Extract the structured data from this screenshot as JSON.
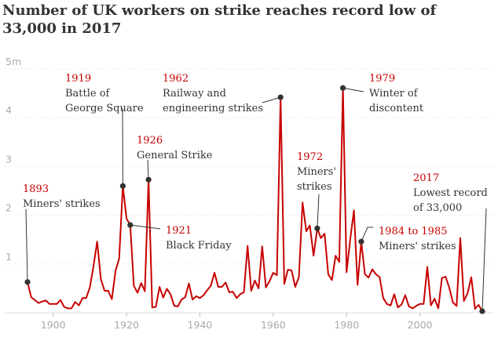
{
  "title": "Number of UK workers on strike reaches record low of 33,000 in 2017",
  "colors": {
    "line": "#c70000",
    "text": "#333333",
    "tick": "#aaaaaa",
    "grid": "#dcdcdc",
    "marker": "#333333"
  },
  "chart_data": {
    "type": "line",
    "xlim": [
      1887,
      2020
    ],
    "ylim": [
      0,
      5
    ],
    "grid": true,
    "y_ticks": [
      0,
      1,
      2,
      3,
      4,
      5
    ],
    "y_tick_labels": [
      "",
      "1",
      "2",
      "3",
      "4",
      "5m"
    ],
    "x_ticks": [
      1900,
      1920,
      1940,
      1960,
      1980,
      2000
    ],
    "x_tick_labels": [
      "1900",
      "1920",
      "1940",
      "1960",
      "1980",
      "2000"
    ],
    "series": [
      {
        "x": [
          1893,
          1894,
          1895,
          1896,
          1897,
          1898,
          1899,
          1900,
          1901,
          1902,
          1903,
          1904,
          1905,
          1906,
          1907,
          1908,
          1909,
          1910,
          1911,
          1912,
          1913,
          1914,
          1915,
          1916,
          1917,
          1918,
          1919,
          1920,
          1921,
          1922,
          1923,
          1924,
          1925,
          1926,
          1927,
          1928,
          1929,
          1930,
          1931,
          1932,
          1933,
          1934,
          1935,
          1936,
          1937,
          1938,
          1939,
          1940,
          1941,
          1942,
          1943,
          1944,
          1945,
          1946,
          1947,
          1948,
          1949,
          1950,
          1951,
          1952,
          1953,
          1954,
          1955,
          1956,
          1957,
          1958,
          1959,
          1960,
          1961,
          1962,
          1963,
          1964,
          1965,
          1966,
          1967,
          1968,
          1969,
          1970,
          1971,
          1972,
          1973,
          1974,
          1975,
          1976,
          1977,
          1978,
          1979,
          1980,
          1981,
          1982,
          1983,
          1984,
          1985,
          1986,
          1987,
          1988,
          1989,
          1990,
          1991,
          1992,
          1993,
          1994,
          1995,
          1996,
          1997,
          1998,
          1999,
          2000,
          2001,
          2002,
          2003,
          2004,
          2005,
          2006,
          2007,
          2008,
          2009,
          2010,
          2011,
          2012,
          2013,
          2014,
          2015,
          2016,
          2017
        ],
        "values": [
          0.63,
          0.32,
          0.26,
          0.2,
          0.23,
          0.25,
          0.18,
          0.18,
          0.18,
          0.26,
          0.12,
          0.09,
          0.09,
          0.22,
          0.15,
          0.3,
          0.3,
          0.52,
          0.96,
          1.46,
          0.69,
          0.45,
          0.45,
          0.28,
          0.86,
          1.11,
          2.6,
          1.93,
          1.8,
          0.55,
          0.41,
          0.61,
          0.44,
          2.73,
          0.11,
          0.12,
          0.53,
          0.31,
          0.49,
          0.38,
          0.14,
          0.13,
          0.27,
          0.32,
          0.6,
          0.27,
          0.34,
          0.3,
          0.36,
          0.46,
          0.56,
          0.82,
          0.53,
          0.53,
          0.62,
          0.42,
          0.43,
          0.3,
          0.38,
          0.42,
          1.37,
          0.45,
          0.66,
          0.5,
          1.36,
          0.52,
          0.65,
          0.82,
          0.77,
          4.42,
          0.59,
          0.88,
          0.87,
          0.53,
          0.73,
          2.26,
          1.67,
          1.79,
          1.17,
          1.73,
          1.53,
          1.62,
          0.79,
          0.67,
          1.17,
          1.04,
          4.61,
          0.83,
          1.51,
          2.1,
          0.57,
          1.46,
          0.79,
          0.72,
          0.89,
          0.79,
          0.73,
          0.3,
          0.18,
          0.15,
          0.38,
          0.11,
          0.17,
          0.36,
          0.13,
          0.09,
          0.14,
          0.18,
          0.18,
          0.94,
          0.15,
          0.29,
          0.09,
          0.71,
          0.74,
          0.51,
          0.21,
          0.14,
          1.53,
          0.24,
          0.4,
          0.73,
          0.08,
          0.16,
          0.03
        ]
      }
    ],
    "annotations": [
      {
        "x": 1893,
        "y": 0.63,
        "year_label": "1893",
        "text": [
          "Miners' strikes"
        ]
      },
      {
        "x": 1919,
        "y": 2.6,
        "year_label": "1919",
        "text": [
          "Battle of",
          "George Square"
        ]
      },
      {
        "x": 1921,
        "y": 1.8,
        "year_label": "1921",
        "text": [
          "Black Friday"
        ]
      },
      {
        "x": 1926,
        "y": 2.73,
        "year_label": "1926",
        "text": [
          "General Strike"
        ]
      },
      {
        "x": 1962,
        "y": 4.42,
        "year_label": "1962",
        "text": [
          "Railway and",
          "engineering strikes"
        ]
      },
      {
        "x": 1972,
        "y": 1.73,
        "year_label": "1972",
        "text": [
          "Miners'",
          "strikes"
        ]
      },
      {
        "x": 1979,
        "y": 4.61,
        "year_label": "1979",
        "text": [
          "Winter of",
          "discontent"
        ]
      },
      {
        "x": 1984,
        "y": 1.46,
        "year_label": "1984 to 1985",
        "text": [
          "Miners' strikes"
        ]
      },
      {
        "x": 2017,
        "y": 0.03,
        "year_label": "2017",
        "text": [
          "Lowest record",
          "of 33,000"
        ]
      }
    ]
  }
}
